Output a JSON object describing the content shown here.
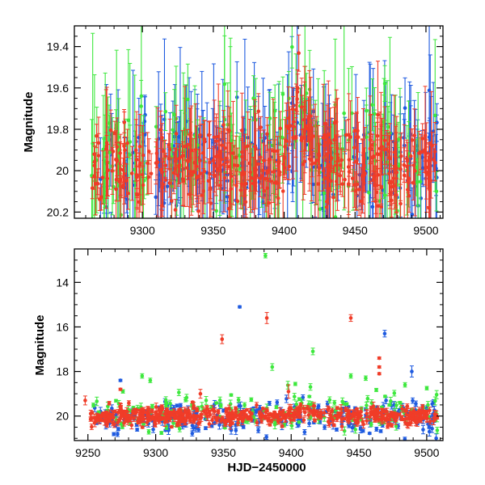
{
  "figure": {
    "top_panel_label": "Magnitude",
    "bottom_panel_label": "Magnitude",
    "xlabel": "HJD−2450000"
  },
  "chart_data": [
    {
      "type": "scatter",
      "title": "",
      "xlabel": "",
      "ylabel": "Magnitude",
      "xlim": [
        1252,
        1512
      ],
      "ylim": [
        20.23,
        19.3
      ],
      "y_inverted": true,
      "xticks": [
        9300,
        9350,
        9400,
        9450,
        9500
      ],
      "yticks": [
        19.4,
        19.6,
        19.8,
        20,
        20.2
      ],
      "x_tick_offset": 8000,
      "series": [
        {
          "name": "blue",
          "color": "#1f5be0",
          "seed": 11,
          "n": 220,
          "center": 19.95,
          "spread": 0.12,
          "err": [
            0.08,
            0.55
          ]
        },
        {
          "name": "green",
          "color": "#3ee83e",
          "seed": 23,
          "n": 170,
          "center": 19.93,
          "spread": 0.14,
          "err": [
            0.08,
            0.55
          ]
        },
        {
          "name": "red",
          "color": "#f03c28",
          "seed": 37,
          "n": 420,
          "center": 19.97,
          "spread": 0.1,
          "err": [
            0.05,
            0.35
          ]
        }
      ]
    },
    {
      "type": "scatter",
      "title": "",
      "xlabel": "HJD−2450000",
      "ylabel": "Magnitude",
      "xlim": [
        1240,
        1512
      ],
      "ylim": [
        21.1,
        12.5
      ],
      "y_inverted": true,
      "xticks": [
        9250,
        9300,
        9350,
        9400,
        9450,
        9500
      ],
      "yticks": [
        14,
        16,
        18,
        20
      ],
      "x_tick_offset": 8000,
      "series": [
        {
          "name": "blue",
          "color": "#1f5be0",
          "seed": 41,
          "n": 260,
          "center": 20.05,
          "spread": 0.35,
          "outliers": [
            {
              "x": 1362,
              "y": 15.1,
              "e": 0.05
            },
            {
              "x": 1469,
              "y": 16.3,
              "e": 0.15
            },
            {
              "x": 1489,
              "y": 18.0,
              "e": 0.25
            },
            {
              "x": 1274,
              "y": 18.4,
              "e": 0.05
            },
            {
              "x": 1470,
              "y": 19.3,
              "e": 0.15
            },
            {
              "x": 1476,
              "y": 19.5,
              "e": 0.15
            },
            {
              "x": 1502,
              "y": 20.7,
              "e": 0.2
            },
            {
              "x": 1507,
              "y": 21.0,
              "e": 0.2
            }
          ]
        },
        {
          "name": "green",
          "color": "#3ee83e",
          "seed": 53,
          "n": 180,
          "center": 19.8,
          "spread": 0.45,
          "outliers": [
            {
              "x": 1381,
              "y": 12.8,
              "e": 0.1
            },
            {
              "x": 1416,
              "y": 17.1,
              "e": 0.15
            },
            {
              "x": 1386,
              "y": 17.8,
              "e": 0.15
            },
            {
              "x": 1290,
              "y": 18.2,
              "e": 0.1
            },
            {
              "x": 1296,
              "y": 18.4,
              "e": 0.1
            },
            {
              "x": 1444,
              "y": 18.2,
              "e": 0.1
            },
            {
              "x": 1455,
              "y": 18.3,
              "e": 0.1
            },
            {
              "x": 1484,
              "y": 18.6,
              "e": 0.1
            }
          ]
        },
        {
          "name": "red",
          "color": "#f03c28",
          "seed": 67,
          "n": 520,
          "center": 20.0,
          "spread": 0.18,
          "outliers": [
            {
              "x": 1349,
              "y": 16.55,
              "e": 0.2
            },
            {
              "x": 1382,
              "y": 15.6,
              "e": 0.25
            },
            {
              "x": 1444,
              "y": 15.6,
              "e": 0.15
            },
            {
              "x": 1465,
              "y": 17.4,
              "e": 0.05
            },
            {
              "x": 1465,
              "y": 17.8,
              "e": 0.05
            },
            {
              "x": 1465,
              "y": 18.1,
              "e": 0.05
            },
            {
              "x": 1248,
              "y": 19.3,
              "e": 0.2
            },
            {
              "x": 1274,
              "y": 18.8,
              "e": 0.05
            },
            {
              "x": 1333,
              "y": 19.0,
              "e": 0.2
            },
            {
              "x": 1398,
              "y": 18.9,
              "e": 0.3
            }
          ]
        }
      ]
    }
  ]
}
